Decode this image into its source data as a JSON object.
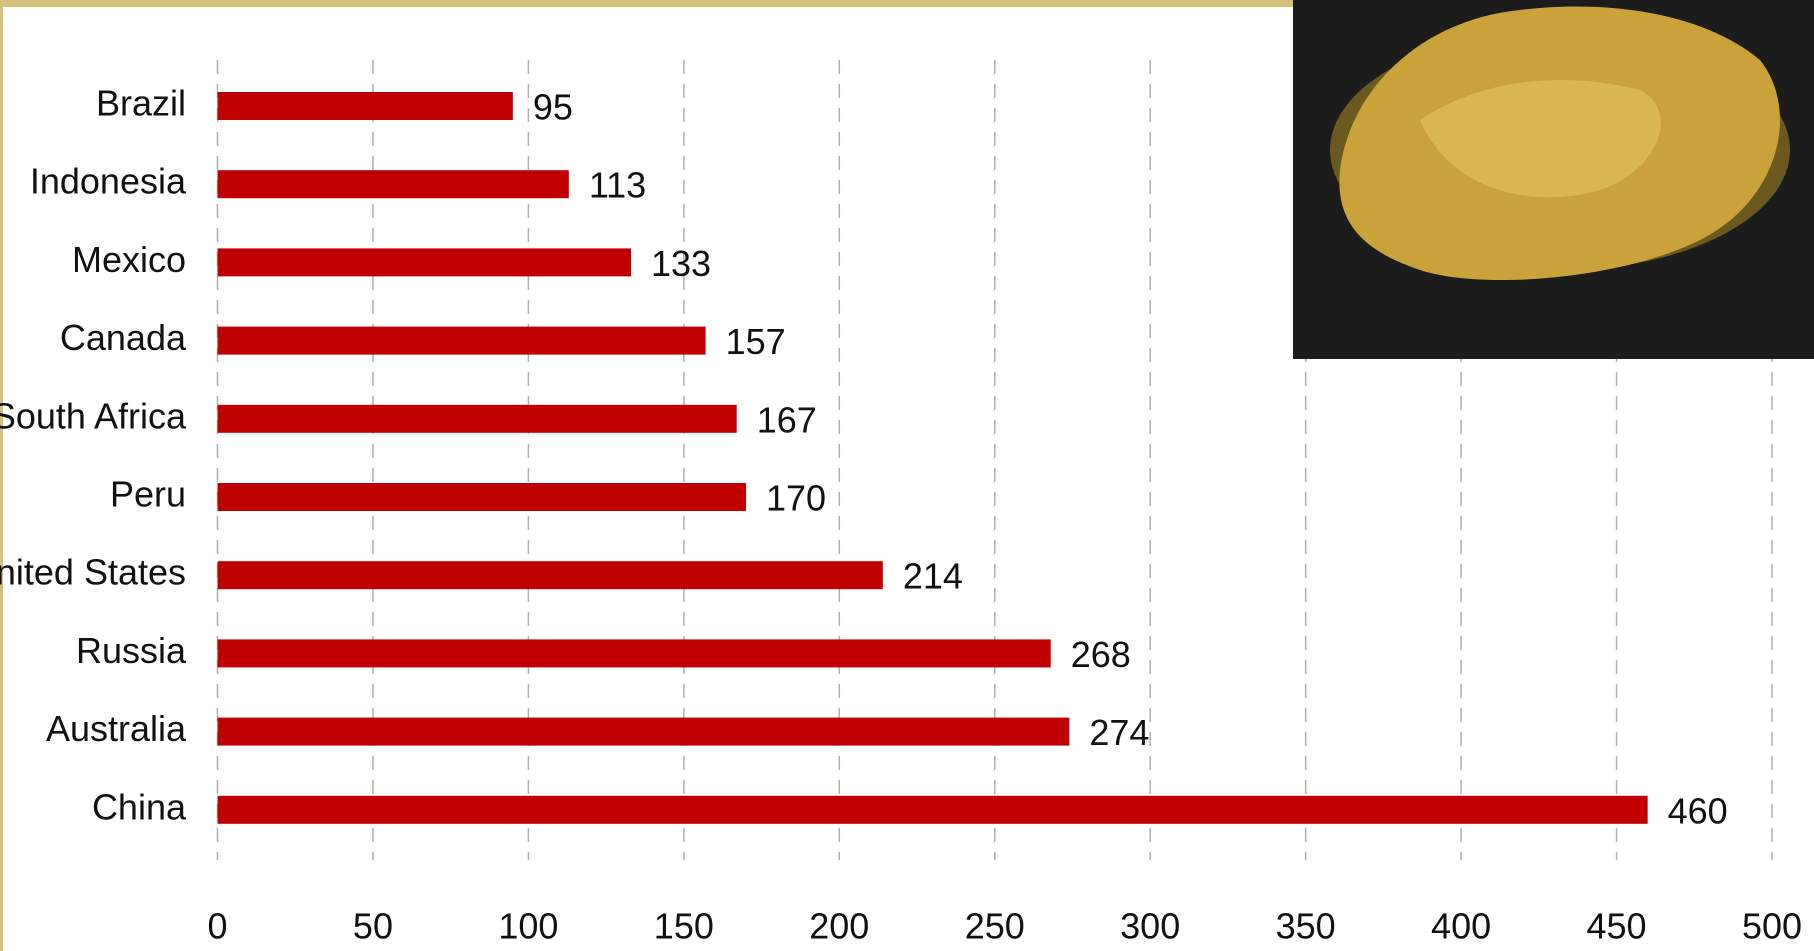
{
  "chart_data": {
    "type": "bar",
    "orientation": "horizontal",
    "categories": [
      "Brazil",
      "Indonesia",
      "Mexico",
      "Canada",
      "South Africa",
      "Peru",
      "United States",
      "Russia",
      "Australia",
      "China"
    ],
    "values": [
      95,
      113,
      133,
      157,
      167,
      170,
      214,
      268,
      274,
      460
    ],
    "color": "#c00000",
    "xlim": [
      0,
      500
    ],
    "xticks": [
      0,
      50,
      100,
      150,
      200,
      250,
      300,
      350,
      400,
      450,
      500
    ],
    "grid": true
  }
}
